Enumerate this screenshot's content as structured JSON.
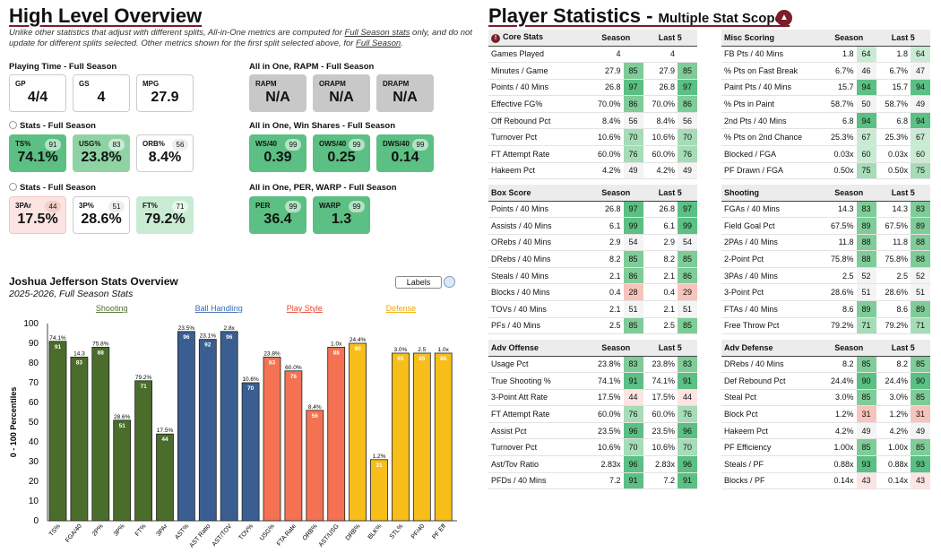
{
  "overview": {
    "title": "High Level Overview",
    "note_text": "Unlike other statistics that adjust with different splits, All-in-One metrics are computed for ",
    "note_link1": "Full Season stats",
    "note_text2": " only, and do not update for different splits selected. Other metrics shown for the first split selected above, for ",
    "note_link2": "Full Season",
    "note_end": "."
  },
  "sections": {
    "playing_time": "Playing Time - Full Season",
    "stats1": "Stats - Full Season",
    "stats2": "Stats - Full Season",
    "rapm": "All in One, RAPM - Full Season",
    "winshares": "All in One, Win Shares - Full Season",
    "per": "All in One, PER, WARP - Full Season"
  },
  "cards": {
    "gp": {
      "label": "GP",
      "value": "4/4"
    },
    "gs": {
      "label": "GS",
      "value": "4"
    },
    "mpg": {
      "label": "MPG",
      "value": "27.9"
    },
    "ts": {
      "label": "TS%",
      "value": "74.1%",
      "pct": "91"
    },
    "usg": {
      "label": "USG%",
      "value": "23.8%",
      "pct": "83"
    },
    "orb": {
      "label": "ORB%",
      "value": "8.4%",
      "pct": "56"
    },
    "tpar": {
      "label": "3PAr",
      "value": "17.5%",
      "pct": "44"
    },
    "tpp": {
      "label": "3P%",
      "value": "28.6%",
      "pct": "51"
    },
    "ftp": {
      "label": "FT%",
      "value": "79.2%",
      "pct": "71"
    },
    "rapm": {
      "label": "RAPM",
      "value": "N/A"
    },
    "orapm": {
      "label": "ORAPM",
      "value": "N/A"
    },
    "drapm": {
      "label": "DRAPM",
      "value": "N/A"
    },
    "ws40": {
      "label": "WS/40",
      "value": "0.39",
      "pct": "99"
    },
    "ows40": {
      "label": "OWS/40",
      "value": "0.25",
      "pct": "99"
    },
    "dws40": {
      "label": "DWS/40",
      "value": "0.14",
      "pct": "99"
    },
    "per": {
      "label": "PER",
      "value": "36.4",
      "pct": "99"
    },
    "warp": {
      "label": "WARP",
      "value": "1.3",
      "pct": "99"
    }
  },
  "chart_header": {
    "title": "Joshua Jefferson Stats Overview",
    "subtitle": "2025-2026, Full Season Stats",
    "labels_button": "Labels"
  },
  "chart_data": {
    "type": "bar",
    "title": "Joshua Jefferson Stats Overview",
    "ylabel": "0 - 100 Percentiles",
    "ylim": [
      0,
      100
    ],
    "yticks": [
      0,
      10,
      20,
      30,
      40,
      50,
      60,
      70,
      80,
      90,
      100
    ],
    "groups": [
      {
        "name": "Shooting",
        "color": "#4a6d2b",
        "text_color": "#4a6d2b",
        "count": 6
      },
      {
        "name": "Ball Handling",
        "color": "#3a5e91",
        "text_color": "#3a6ab5",
        "count": 4
      },
      {
        "name": "Play Style",
        "color": "#f47252",
        "text_color": "#e8472e",
        "count": 4
      },
      {
        "name": "Defense",
        "color": "#f7be1a",
        "text_color": "#f2a900",
        "count": 5
      }
    ],
    "categories": [
      "TS%",
      "FGA/40",
      "2P%",
      "3P%",
      "FT%",
      "3PAr",
      "AST%",
      "AST Ratio",
      "AST/TOV",
      "TOV%",
      "USG%",
      "FTA Rate",
      "ORB%",
      "AST/USG",
      "DRB%",
      "BLK%",
      "STL%",
      "PF/40",
      "PF Eff"
    ],
    "values": [
      91,
      83,
      88,
      51,
      71,
      44,
      96,
      92,
      96,
      70,
      83,
      76,
      56,
      88,
      90,
      31,
      85,
      85,
      85
    ],
    "raw_labels": [
      "74.1%",
      "14.3",
      "75.8%",
      "28.6%",
      "79.2%",
      "17.5%",
      "23.5%",
      "23.1%",
      "2.8x",
      "10.6%",
      "23.8%",
      "60.0%",
      "8.4%",
      "1.0x",
      "24.4%",
      "1.2%",
      "3.0%",
      "2.5",
      "1.0x"
    ]
  },
  "player_stats": {
    "title": "Player Statistics",
    "subtitle": "Multiple Stat Scopes"
  },
  "tables": {
    "core": {
      "title": "Core Stats",
      "col1": "Season",
      "col2": "Last 5",
      "rows": [
        [
          "Games Played",
          "4",
          "",
          "4",
          ""
        ],
        [
          "Minutes / Game",
          "27.9",
          "85",
          "27.9",
          "85"
        ],
        [
          "Points / 40 Mins",
          "26.8",
          "97",
          "26.8",
          "97"
        ],
        [
          "Effective FG%",
          "70.0%",
          "86",
          "70.0%",
          "86"
        ],
        [
          "Off Rebound Pct",
          "8.4%",
          "56",
          "8.4%",
          "56"
        ],
        [
          "Turnover Pct",
          "10.6%",
          "70",
          "10.6%",
          "70"
        ],
        [
          "FT Attempt Rate",
          "60.0%",
          "76",
          "60.0%",
          "76"
        ],
        [
          "Hakeem Pct",
          "4.2%",
          "49",
          "4.2%",
          "49"
        ]
      ]
    },
    "misc": {
      "title": "Misc Scoring",
      "col1": "Season",
      "col2": "Last 5",
      "rows": [
        [
          "FB Pts / 40 Mins",
          "1.8",
          "64",
          "1.8",
          "64"
        ],
        [
          "% Pts on Fast Break",
          "6.7%",
          "46",
          "6.7%",
          "47"
        ],
        [
          "Paint Pts / 40 Mins",
          "15.7",
          "94",
          "15.7",
          "94"
        ],
        [
          "% Pts in Paint",
          "58.7%",
          "50",
          "58.7%",
          "49"
        ],
        [
          "2nd Pts / 40 Mins",
          "6.8",
          "94",
          "6.8",
          "94"
        ],
        [
          "% Pts on 2nd Chance",
          "25.3%",
          "67",
          "25.3%",
          "67"
        ],
        [
          "Blocked / FGA",
          "0.03x",
          "60",
          "0.03x",
          "60"
        ],
        [
          "PF Drawn / FGA",
          "0.50x",
          "75",
          "0.50x",
          "75"
        ]
      ]
    },
    "box": {
      "title": "Box Score",
      "col1": "Season",
      "col2": "Last 5",
      "rows": [
        [
          "Points / 40 Mins",
          "26.8",
          "97",
          "26.8",
          "97"
        ],
        [
          "Assists / 40 Mins",
          "6.1",
          "99",
          "6.1",
          "99"
        ],
        [
          "ORebs / 40 Mins",
          "2.9",
          "54",
          "2.9",
          "54"
        ],
        [
          "DRebs / 40 Mins",
          "8.2",
          "85",
          "8.2",
          "85"
        ],
        [
          "Steals / 40 Mins",
          "2.1",
          "86",
          "2.1",
          "86"
        ],
        [
          "Blocks / 40 Mins",
          "0.4",
          "28",
          "0.4",
          "29"
        ],
        [
          "TOVs / 40 Mins",
          "2.1",
          "51",
          "2.1",
          "51"
        ],
        [
          "PFs / 40 Mins",
          "2.5",
          "85",
          "2.5",
          "85"
        ]
      ]
    },
    "shooting": {
      "title": "Shooting",
      "col1": "Season",
      "col2": "Last 5",
      "rows": [
        [
          "FGAs / 40 Mins",
          "14.3",
          "83",
          "14.3",
          "83"
        ],
        [
          "Field Goal Pct",
          "67.5%",
          "89",
          "67.5%",
          "89"
        ],
        [
          "2PAs / 40 Mins",
          "11.8",
          "88",
          "11.8",
          "88"
        ],
        [
          "2-Point Pct",
          "75.8%",
          "88",
          "75.8%",
          "88"
        ],
        [
          "3PAs / 40 Mins",
          "2.5",
          "52",
          "2.5",
          "52"
        ],
        [
          "3-Point Pct",
          "28.6%",
          "51",
          "28.6%",
          "51"
        ],
        [
          "FTAs / 40 Mins",
          "8.6",
          "89",
          "8.6",
          "89"
        ],
        [
          "Free Throw Pct",
          "79.2%",
          "71",
          "79.2%",
          "71"
        ]
      ]
    },
    "advoff": {
      "title": "Adv Offense",
      "col1": "Season",
      "col2": "Last 5",
      "rows": [
        [
          "Usage Pct",
          "23.8%",
          "83",
          "23.8%",
          "83"
        ],
        [
          "True Shooting %",
          "74.1%",
          "91",
          "74.1%",
          "91"
        ],
        [
          "3-Point Att Rate",
          "17.5%",
          "44",
          "17.5%",
          "44"
        ],
        [
          "FT Attempt Rate",
          "60.0%",
          "76",
          "60.0%",
          "76"
        ],
        [
          "Assist Pct",
          "23.5%",
          "96",
          "23.5%",
          "96"
        ],
        [
          "Turnover Pct",
          "10.6%",
          "70",
          "10.6%",
          "70"
        ],
        [
          "Ast/Tov Ratio",
          "2.83x",
          "96",
          "2.83x",
          "96"
        ],
        [
          "PFDs / 40 Mins",
          "7.2",
          "91",
          "7.2",
          "91"
        ]
      ]
    },
    "advdef": {
      "title": "Adv Defense",
      "col1": "Season",
      "col2": "Last 5",
      "rows": [
        [
          "DRebs / 40 Mins",
          "8.2",
          "85",
          "8.2",
          "85"
        ],
        [
          "Def Rebound Pct",
          "24.4%",
          "90",
          "24.4%",
          "90"
        ],
        [
          "Steal Pct",
          "3.0%",
          "85",
          "3.0%",
          "85"
        ],
        [
          "Block Pct",
          "1.2%",
          "31",
          "1.2%",
          "31"
        ],
        [
          "Hakeem Pct",
          "4.2%",
          "49",
          "4.2%",
          "49"
        ],
        [
          "PF Efficiency",
          "1.00x",
          "85",
          "1.00x",
          "85"
        ],
        [
          "Steals / PF",
          "0.88x",
          "93",
          "0.88x",
          "93"
        ],
        [
          "Blocks / PF",
          "0.14x",
          "43",
          "0.14x",
          "43"
        ]
      ]
    }
  }
}
